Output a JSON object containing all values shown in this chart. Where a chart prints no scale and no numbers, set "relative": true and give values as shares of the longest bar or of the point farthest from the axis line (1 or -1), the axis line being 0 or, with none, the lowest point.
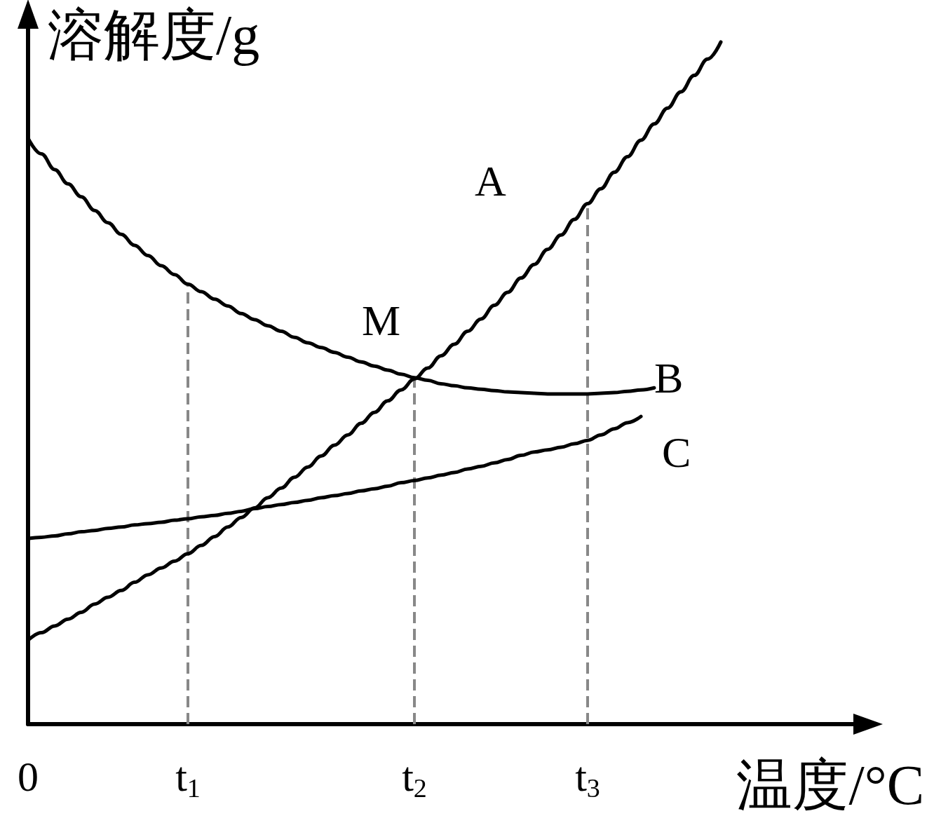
{
  "chart_data": {
    "type": "line",
    "relative": true,
    "xlabel": "温度/°C",
    "ylabel": "溶解度/g",
    "line_style": "solid",
    "categories": [
      "0",
      null,
      null,
      null,
      null,
      null,
      null,
      null,
      null,
      null,
      null,
      null,
      "t$_{1}$",
      null,
      null,
      null,
      null,
      null,
      null,
      null,
      null,
      null,
      null,
      null,
      null,
      null,
      null,
      null,
      null,
      "t$_{2}$",
      null,
      null,
      null,
      null,
      null,
      null,
      null,
      null,
      null,
      null,
      null,
      null,
      "t$_{3}$",
      null,
      null,
      null,
      null,
      null,
      null,
      null,
      null,
      null,
      null,
      null,
      null,
      null,
      null,
      null,
      null,
      null,
      null,
      null,
      null,
      null
    ],
    "series": [
      {
        "name": "A",
        "color": "#000000",
        "values": [
          0.123,
          0.134,
          0.144,
          0.154,
          0.164,
          0.176,
          0.186,
          0.196,
          0.208,
          0.219,
          0.229,
          0.239,
          0.25,
          0.262,
          0.275,
          0.289,
          0.303,
          0.317,
          0.332,
          0.346,
          0.362,
          0.377,
          0.393,
          0.409,
          0.424,
          0.441,
          0.457,
          0.474,
          0.49,
          0.506,
          0.522,
          0.54,
          0.557,
          0.576,
          0.594,
          0.614,
          0.633,
          0.654,
          0.674,
          0.696,
          0.717,
          0.74,
          0.763,
          0.785,
          0.809,
          0.832,
          0.856,
          0.88,
          0.903,
          0.927,
          0.951,
          0.975,
          1,
          null,
          null,
          null,
          null,
          null,
          null,
          null,
          null,
          null,
          null,
          null
        ]
      },
      {
        "name": "B",
        "color": "#000000",
        "values": [
          0.859,
          0.836,
          0.813,
          0.792,
          0.773,
          0.753,
          0.735,
          0.718,
          0.702,
          0.687,
          0.672,
          0.659,
          0.645,
          0.634,
          0.623,
          0.613,
          0.602,
          0.593,
          0.584,
          0.576,
          0.567,
          0.559,
          0.552,
          0.545,
          0.538,
          0.531,
          0.525,
          0.519,
          0.513,
          0.508,
          0.504,
          0.499,
          0.496,
          0.493,
          0.491,
          0.489,
          0.487,
          0.486,
          0.485,
          0.484,
          0.484,
          0.484,
          0.484,
          0.485,
          0.486,
          0.488,
          0.49,
          0.493,
          null,
          null,
          null,
          null,
          null,
          null,
          null,
          null,
          null,
          null,
          null,
          null,
          null,
          null,
          null,
          null
        ]
      },
      {
        "name": "C",
        "color": "#000000",
        "values": [
          0.272,
          0.274,
          0.276,
          0.279,
          0.282,
          0.284,
          0.287,
          0.289,
          0.292,
          0.294,
          0.296,
          0.299,
          0.301,
          0.304,
          0.306,
          0.309,
          0.312,
          0.316,
          0.319,
          0.322,
          0.325,
          0.328,
          0.332,
          0.335,
          0.338,
          0.342,
          0.345,
          0.349,
          0.354,
          0.357,
          0.361,
          0.365,
          0.369,
          0.374,
          0.378,
          0.383,
          0.388,
          0.394,
          0.399,
          0.402,
          0.406,
          0.411,
          0.416,
          0.424,
          0.433,
          0.442,
          0.451,
          null,
          null,
          null,
          null,
          null,
          null,
          null,
          null,
          null,
          null,
          null,
          null,
          null,
          null,
          null,
          null,
          null
        ]
      }
    ],
    "ref_lines": [
      {
        "axis": "x",
        "value": "t$_{1}$",
        "color": "#888888",
        "line_style": "dashed"
      },
      {
        "axis": "x",
        "value": "t$_{2}$",
        "color": "#888888",
        "line_style": "dashed"
      },
      {
        "axis": "x",
        "value": "t$_{3}$",
        "color": "#888888",
        "line_style": "dashed"
      }
    ],
    "annotations": [
      "M"
    ]
  }
}
